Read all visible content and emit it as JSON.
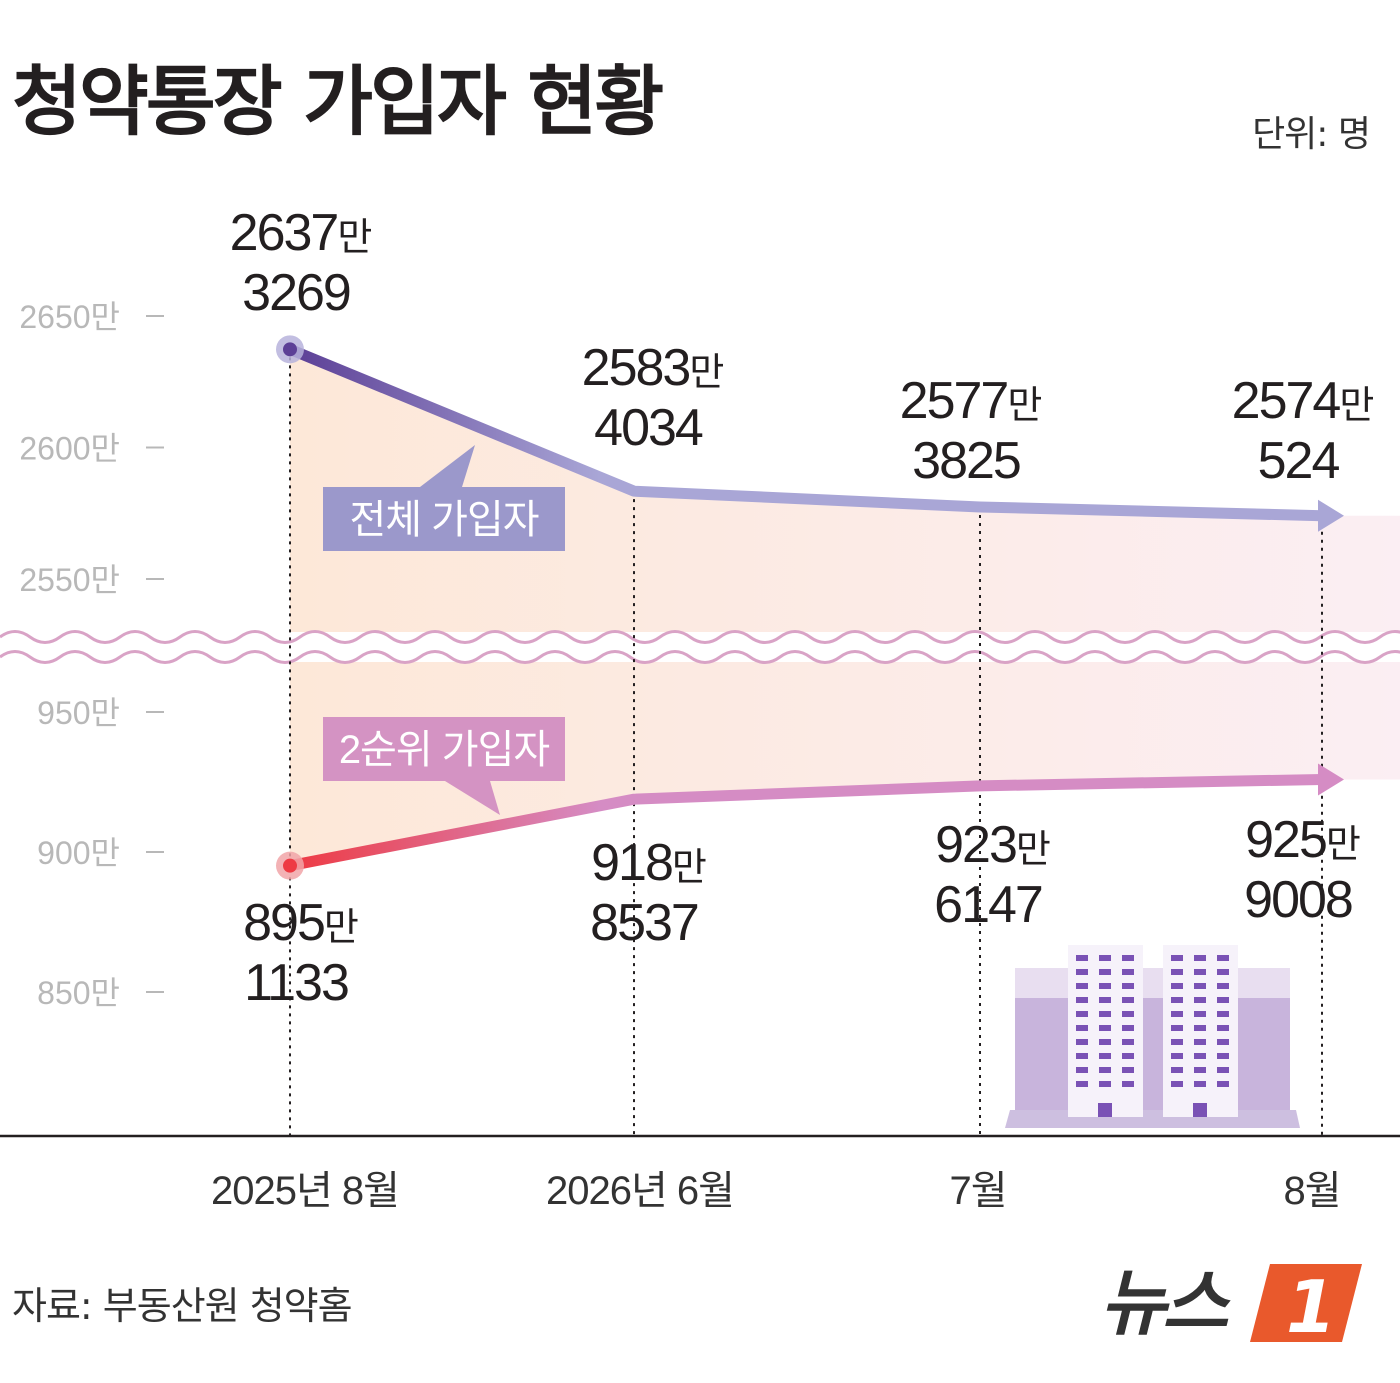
{
  "title": "청약통장 가입자 현황",
  "unit": "단위: 명",
  "source": "자료: 부동산원 청약홈",
  "logo": {
    "text": "뉴스",
    "mark": "1"
  },
  "colors": {
    "total_start": "#5c3f96",
    "total_end": "#a9a6d6",
    "second_start": "#ee3a43",
    "second_end": "#d58cc4",
    "tag_total": "#9b98cb",
    "tag_second": "#d493c3",
    "axis": "#231f20",
    "fill_left": "#fde8d8",
    "fill_right": "#fbeef3"
  },
  "chart_data": {
    "type": "line",
    "categories": [
      "2025년 8월",
      "2026년 6월",
      "7월",
      "8월"
    ],
    "y_ticks": [
      {
        "label": "2650만",
        "value": 26500000
      },
      {
        "label": "2600만",
        "value": 26000000
      },
      {
        "label": "2550만",
        "value": 25500000
      },
      {
        "label": "950만",
        "value": 9500000
      },
      {
        "label": "900만",
        "value": 9000000
      },
      {
        "label": "850만",
        "value": 8500000
      }
    ],
    "axis_break": true,
    "series": [
      {
        "name": "전체 가입자",
        "values": [
          26373269,
          25834034,
          25773825,
          25740524
        ],
        "labels": [
          [
            "2637만",
            "3269"
          ],
          [
            "2583만",
            "4034"
          ],
          [
            "2577만",
            "3825"
          ],
          [
            "2574만",
            "524"
          ]
        ]
      },
      {
        "name": "2순위 가입자",
        "values": [
          8951133,
          9188537,
          9236147,
          9259008
        ],
        "labels": [
          [
            "895만",
            "1133"
          ],
          [
            "918만",
            "8537"
          ],
          [
            "923만",
            "6147"
          ],
          [
            "925만",
            "9008"
          ]
        ]
      }
    ]
  }
}
